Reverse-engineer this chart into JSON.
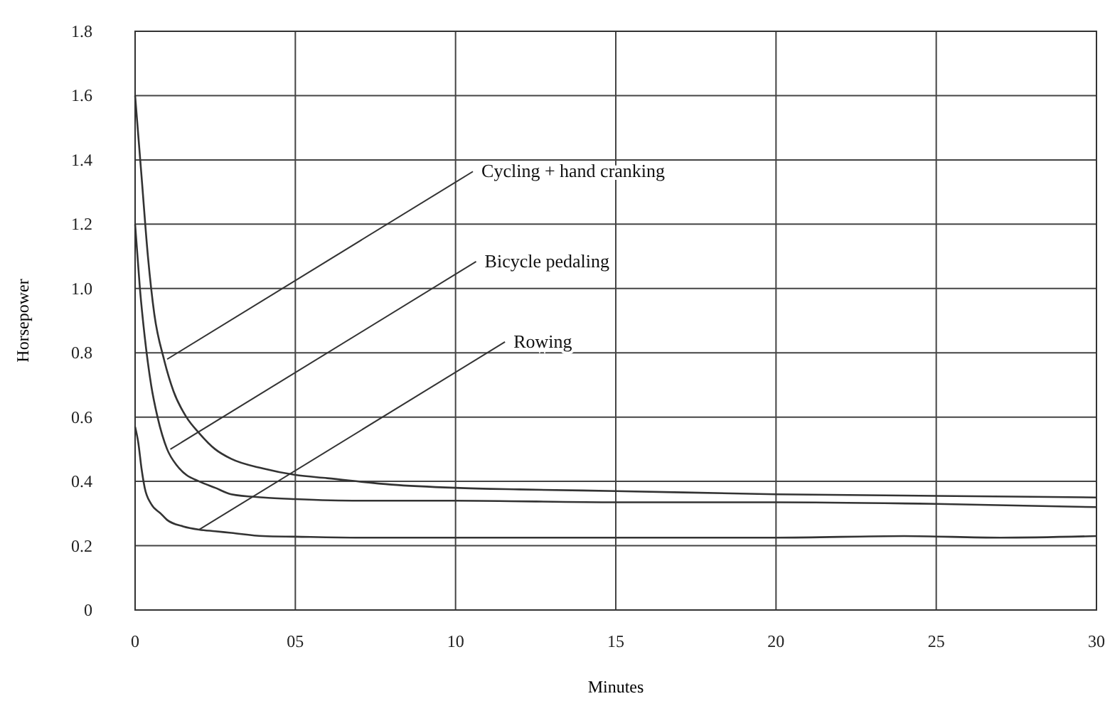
{
  "chart_data": {
    "type": "line",
    "xlabel": "Minutes",
    "ylabel": "Horsepower",
    "xlim": [
      0,
      30
    ],
    "ylim": [
      0,
      1.8
    ],
    "xticks": [
      0,
      {
        "value": 5,
        "label": "05"
      },
      10,
      15,
      20,
      25,
      30
    ],
    "yticks": [
      0,
      0.2,
      0.4,
      0.6,
      0.8,
      {
        "value": 1,
        "label": "1.0"
      },
      1.2,
      1.4,
      1.6,
      1.8
    ],
    "grid": true,
    "marker": "none",
    "line_style": "solid",
    "series": [
      {
        "color": "#333333",
        "x": [
          0,
          0.2,
          0.4,
          0.6,
          0.9,
          1.2,
          1.6,
          2,
          2.5,
          3,
          4,
          5,
          6,
          8,
          10,
          12,
          15,
          20,
          25,
          30
        ],
        "values": [
          1.6,
          1.35,
          1.1,
          0.92,
          0.78,
          0.68,
          0.6,
          0.55,
          0.5,
          0.47,
          0.44,
          0.42,
          0.41,
          0.39,
          0.38,
          0.375,
          0.37,
          0.36,
          0.355,
          0.35
        ]
      },
      {
        "color": "#333333",
        "x": [
          0,
          0.15,
          0.3,
          0.5,
          0.7,
          1,
          1.3,
          1.6,
          2,
          2.5,
          3,
          4,
          5,
          7,
          10,
          15,
          20,
          25,
          30
        ],
        "values": [
          1.2,
          1.0,
          0.85,
          0.7,
          0.6,
          0.5,
          0.45,
          0.42,
          0.4,
          0.38,
          0.36,
          0.35,
          0.345,
          0.34,
          0.34,
          0.335,
          0.335,
          0.33,
          0.32
        ]
      },
      {
        "color": "#333333",
        "x": [
          0,
          0.1,
          0.2,
          0.3,
          0.5,
          0.8,
          1,
          1.5,
          2,
          2.5,
          3,
          4,
          5,
          7,
          10,
          15,
          20,
          24,
          27,
          30
        ],
        "values": [
          0.57,
          0.52,
          0.44,
          0.38,
          0.33,
          0.3,
          0.28,
          0.26,
          0.25,
          0.245,
          0.24,
          0.23,
          0.228,
          0.225,
          0.225,
          0.225,
          0.225,
          0.23,
          0.225,
          0.23
        ]
      }
    ],
    "annotations": [
      {
        "text": "Cycling + hand cranking",
        "x": 1,
        "y": 0.78
      },
      {
        "text": "Bicycle pedaling",
        "x": 1.1,
        "y": 0.5
      },
      {
        "text": "Rowing",
        "x": 2,
        "y": 0.25
      }
    ]
  }
}
